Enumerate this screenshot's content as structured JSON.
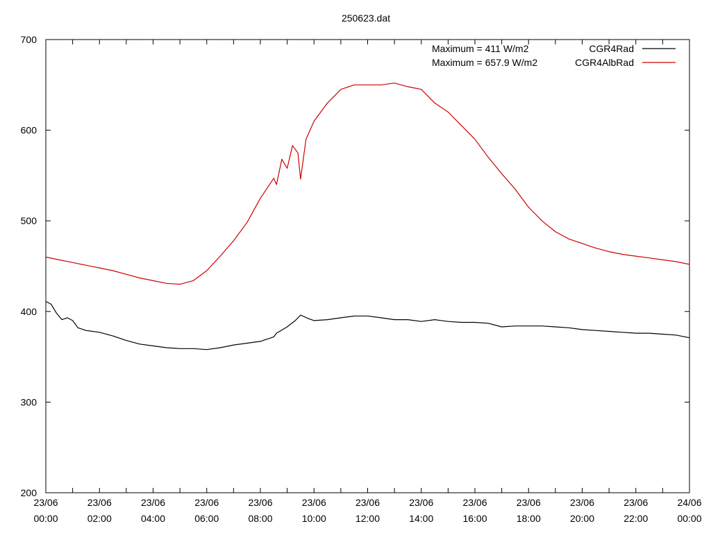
{
  "chart_data": {
    "type": "line",
    "title": "250623.dat",
    "xlabel": "",
    "ylabel": "",
    "xlim_hours": [
      0,
      24
    ],
    "ylim": [
      200,
      700
    ],
    "yticks": [
      200,
      300,
      400,
      500,
      600,
      700
    ],
    "xticks": [
      {
        "date": "23/06",
        "time": "00:00",
        "hour": 0
      },
      {
        "date": "23/06",
        "time": "02:00",
        "hour": 2
      },
      {
        "date": "23/06",
        "time": "04:00",
        "hour": 4
      },
      {
        "date": "23/06",
        "time": "06:00",
        "hour": 6
      },
      {
        "date": "23/06",
        "time": "08:00",
        "hour": 8
      },
      {
        "date": "23/06",
        "time": "10:00",
        "hour": 10
      },
      {
        "date": "23/06",
        "time": "12:00",
        "hour": 12
      },
      {
        "date": "23/06",
        "time": "14:00",
        "hour": 14
      },
      {
        "date": "23/06",
        "time": "16:00",
        "hour": 16
      },
      {
        "date": "23/06",
        "time": "18:00",
        "hour": 18
      },
      {
        "date": "23/06",
        "time": "20:00",
        "hour": 20
      },
      {
        "date": "23/06",
        "time": "22:00",
        "hour": 22
      },
      {
        "date": "24/06",
        "time": "00:00",
        "hour": 24
      }
    ],
    "grid": false,
    "legend_position": "top-right",
    "annotations": [
      "Maximum = 411 W/m2",
      "Maximum = 657.9 W/m2"
    ],
    "series": [
      {
        "name": "CGR4Rad",
        "color": "#000000",
        "x": [
          0,
          0.2,
          0.4,
          0.6,
          0.8,
          1.0,
          1.2,
          1.5,
          2.0,
          2.5,
          3.0,
          3.5,
          4.0,
          4.5,
          5.0,
          5.5,
          6.0,
          6.5,
          7.0,
          7.5,
          8.0,
          8.5,
          8.6,
          9.0,
          9.3,
          9.5,
          9.8,
          10.0,
          10.5,
          11.0,
          11.5,
          12.0,
          12.5,
          13.0,
          13.5,
          14.0,
          14.5,
          15.0,
          15.5,
          16.0,
          16.5,
          17.0,
          17.5,
          18.0,
          18.5,
          19.0,
          19.5,
          20.0,
          20.5,
          21.0,
          21.5,
          22.0,
          22.5,
          23.0,
          23.5,
          24.0
        ],
        "y": [
          411,
          408,
          398,
          391,
          393,
          390,
          382,
          379,
          377,
          373,
          368,
          364,
          362,
          360,
          359,
          359,
          358,
          360,
          363,
          365,
          367,
          372,
          376,
          383,
          390,
          396,
          392,
          390,
          391,
          393,
          395,
          395,
          393,
          391,
          391,
          389,
          391,
          389,
          388,
          388,
          387,
          383,
          384,
          384,
          384,
          383,
          382,
          380,
          379,
          378,
          377,
          376,
          376,
          375,
          374,
          371
        ]
      },
      {
        "name": "CGR4AlbRad",
        "color": "#cc0000",
        "x": [
          0,
          0.5,
          1.0,
          1.5,
          2.0,
          2.5,
          3.0,
          3.5,
          4.0,
          4.5,
          5.0,
          5.5,
          6.0,
          6.5,
          7.0,
          7.5,
          8.0,
          8.5,
          8.6,
          8.8,
          9.0,
          9.2,
          9.4,
          9.5,
          9.7,
          10.0,
          10.5,
          11.0,
          11.5,
          12.0,
          12.5,
          13.0,
          13.5,
          14.0,
          14.5,
          15.0,
          15.5,
          16.0,
          16.5,
          17.0,
          17.5,
          18.0,
          18.5,
          19.0,
          19.5,
          20.0,
          20.5,
          21.0,
          21.5,
          22.0,
          22.5,
          23.0,
          23.5,
          24.0
        ],
        "y": [
          460,
          457,
          454,
          451,
          448,
          445,
          441,
          437,
          434,
          431,
          430,
          434,
          445,
          461,
          478,
          498,
          525,
          547,
          540,
          568,
          558,
          583,
          575,
          546,
          590,
          610,
          630,
          645,
          650,
          650,
          650,
          652,
          648,
          645,
          630,
          620,
          605,
          590,
          570,
          552,
          535,
          515,
          500,
          488,
          480,
          475,
          470,
          466,
          463,
          461,
          459,
          457,
          455,
          452
        ]
      }
    ]
  }
}
